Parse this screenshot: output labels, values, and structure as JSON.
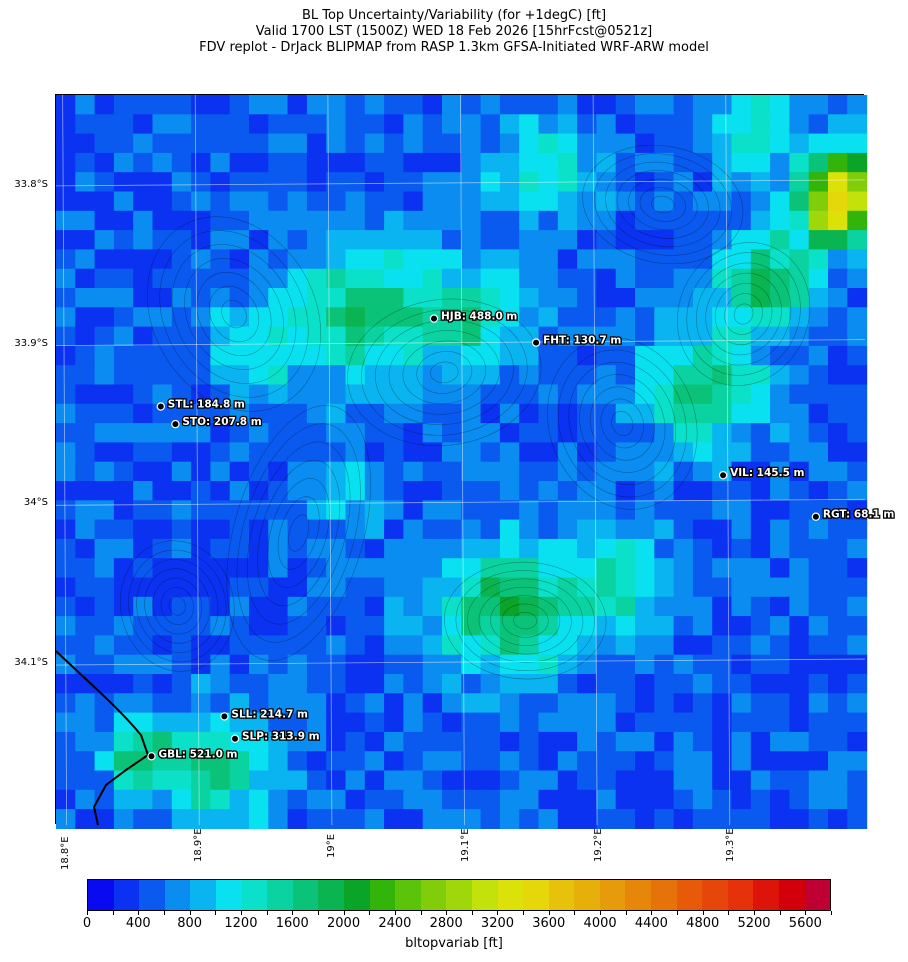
{
  "title": {
    "line1": "BL Top Uncertainty/Variability (for +1degC) [ft]",
    "line2": "Valid 1700 LST (1500Z) WED 18 Feb 2026 [15hrFcst@0521z]",
    "line3": "FDV replot - DrJack BLIPMAP from RASP 1.3km GFSA-Initiated WRF-ARW model"
  },
  "map": {
    "lat_labels": [
      "33.8°S",
      "33.9°S",
      "34°S",
      "34.1°S"
    ],
    "lat_values": [
      -33.8,
      -33.9,
      -34.0,
      -34.1
    ],
    "lon_labels": [
      "18.8°E",
      "18.9°E",
      "19°E",
      "19.1°E",
      "19.2°E",
      "19.3°E"
    ],
    "lon_values": [
      18.8,
      18.9,
      19.0,
      19.1,
      19.2,
      19.3
    ],
    "lon_range": [
      18.795,
      19.405
    ],
    "lat_range": [
      -34.202,
      -33.745
    ]
  },
  "stations": [
    {
      "code": "HJB",
      "label": "HJB: 488.0 m",
      "lon": 19.08,
      "lat": -33.885
    },
    {
      "code": "FHT",
      "label": "FHT: 130.7 m",
      "lon": 19.157,
      "lat": -33.9
    },
    {
      "code": "STL",
      "label": "STL: 184.8 m",
      "lon": 18.874,
      "lat": -33.94
    },
    {
      "code": "STO",
      "label": "STO: 207.8 m",
      "lon": 18.885,
      "lat": -33.951
    },
    {
      "code": "VIL",
      "label": "VIL: 145.5 m",
      "lon": 19.298,
      "lat": -33.983
    },
    {
      "code": "RGT",
      "label": "RGT: 68.1 m",
      "lon": 19.368,
      "lat": -34.009
    },
    {
      "code": "SLL",
      "label": "SLL: 214.7 m",
      "lon": 18.922,
      "lat": -34.134
    },
    {
      "code": "SLP",
      "label": "SLP: 313.9 m",
      "lon": 18.93,
      "lat": -34.148
    },
    {
      "code": "GBL",
      "label": "GBL: 521.0 m",
      "lon": 18.867,
      "lat": -34.159
    }
  ],
  "colorbar": {
    "title": "bltopvariab [ft]",
    "min": 0,
    "max": 5800,
    "step": 200,
    "tick_labels": [
      "0",
      "400",
      "800",
      "1200",
      "1600",
      "2000",
      "2400",
      "2800",
      "3200",
      "3600",
      "4000",
      "4400",
      "4800",
      "5200",
      "5600"
    ],
    "colors": [
      "#0a0af0",
      "#0a32f0",
      "#0a5af0",
      "#0a8cf0",
      "#0ab4f0",
      "#0ae1f0",
      "#0ae1c8",
      "#0ad2a0",
      "#0ac378",
      "#0ab450",
      "#0aa528",
      "#32b40a",
      "#5ac30a",
      "#82cd0a",
      "#a0d70a",
      "#c3e10a",
      "#dce10a",
      "#e6d70a",
      "#e6c30a",
      "#e6af0a",
      "#e69b0a",
      "#e6870a",
      "#e6730a",
      "#e65a0a",
      "#e6460a",
      "#e6320a",
      "#dc140a",
      "#d2000a",
      "#be0032"
    ]
  }
}
